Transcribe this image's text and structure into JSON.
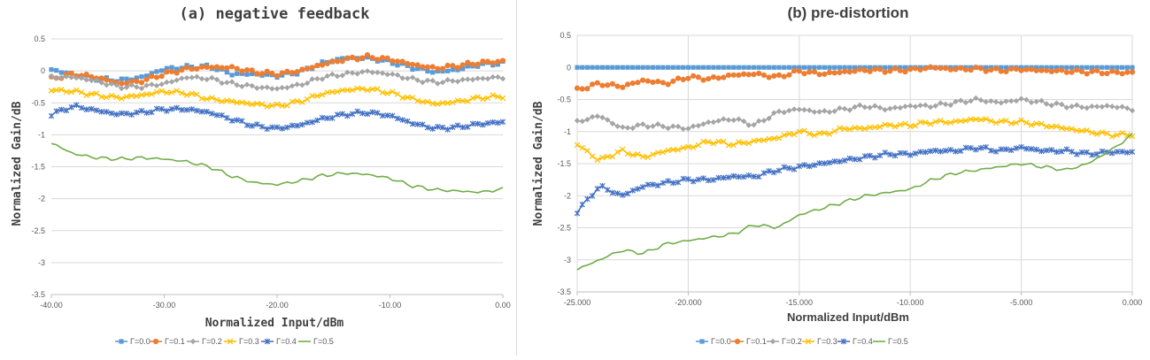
{
  "series_meta": [
    {
      "name": "Γ=0.0",
      "color": "#5b9bd5",
      "marker": "square"
    },
    {
      "name": "Γ=0.1",
      "color": "#ed7d31",
      "marker": "circle"
    },
    {
      "name": "Γ=0.2",
      "color": "#a5a5a5",
      "marker": "diamond"
    },
    {
      "name": "Γ=0.3",
      "color": "#ffc000",
      "marker": "x"
    },
    {
      "name": "Γ=0.4",
      "color": "#4472c4",
      "marker": "star"
    },
    {
      "name": "Γ=0.5",
      "color": "#70ad47",
      "marker": "none"
    }
  ],
  "chart_data": [
    {
      "type": "line",
      "title": "(a) negative feedback",
      "xlabel": "Normalized Input/dBm",
      "ylabel": "Normalized Gain/dB",
      "xlim": [
        -40,
        0
      ],
      "ylim": [
        -3.5,
        0.5
      ],
      "xticks": [
        -40,
        -30,
        -20,
        -10,
        0
      ],
      "xtick_labels": [
        "-40.00",
        "-30.00",
        "-20.00",
        "-10.00",
        "0.00"
      ],
      "yticks": [
        0.5,
        0,
        -0.5,
        -1,
        -1.5,
        -2,
        -2.5,
        -3,
        -3.5
      ],
      "ytick_labels": [
        "0.5",
        "0",
        "-0.5",
        "-1",
        "-1.5",
        "-2",
        "-2.5",
        "-3",
        "-3.5"
      ],
      "grid": "horizontal",
      "legend": "bottom",
      "x": [
        -40,
        -38,
        -36,
        -34,
        -32,
        -30,
        -28,
        -26,
        -24,
        -22,
        -20,
        -18,
        -16,
        -14,
        -12,
        -10,
        -8,
        -6,
        -4,
        -2,
        0
      ],
      "series": [
        {
          "name": "Γ=0.0",
          "values": [
            0.02,
            -0.06,
            -0.12,
            -0.15,
            -0.1,
            0.03,
            0.06,
            0.07,
            -0.05,
            -0.05,
            -0.08,
            -0.02,
            0.12,
            0.2,
            0.2,
            0.14,
            0.05,
            -0.02,
            0.02,
            0.1,
            0.12
          ]
        },
        {
          "name": "Γ=0.1",
          "values": [
            -0.12,
            -0.05,
            -0.1,
            -0.2,
            -0.16,
            -0.05,
            0.03,
            0.06,
            0.05,
            -0.02,
            -0.05,
            0.0,
            0.1,
            0.18,
            0.22,
            0.18,
            0.1,
            0.04,
            0.08,
            0.13,
            0.15
          ]
        },
        {
          "name": "Γ=0.2",
          "values": [
            -0.1,
            -0.1,
            -0.16,
            -0.25,
            -0.25,
            -0.2,
            -0.1,
            -0.12,
            -0.2,
            -0.25,
            -0.28,
            -0.22,
            -0.1,
            -0.05,
            -0.01,
            -0.05,
            -0.13,
            -0.18,
            -0.15,
            -0.12,
            -0.1
          ]
        },
        {
          "name": "Γ=0.3",
          "values": [
            -0.3,
            -0.32,
            -0.38,
            -0.42,
            -0.38,
            -0.32,
            -0.35,
            -0.44,
            -0.48,
            -0.52,
            -0.55,
            -0.48,
            -0.36,
            -0.3,
            -0.28,
            -0.34,
            -0.44,
            -0.52,
            -0.48,
            -0.42,
            -0.4
          ]
        },
        {
          "name": "Γ=0.4",
          "values": [
            -0.68,
            -0.55,
            -0.62,
            -0.68,
            -0.65,
            -0.6,
            -0.6,
            -0.65,
            -0.76,
            -0.86,
            -0.9,
            -0.85,
            -0.75,
            -0.68,
            -0.65,
            -0.7,
            -0.82,
            -0.9,
            -0.88,
            -0.83,
            -0.8
          ]
        },
        {
          "name": "Γ=0.5",
          "values": [
            -1.13,
            -1.3,
            -1.36,
            -1.38,
            -1.36,
            -1.38,
            -1.42,
            -1.5,
            -1.65,
            -1.75,
            -1.78,
            -1.72,
            -1.64,
            -1.6,
            -1.62,
            -1.68,
            -1.8,
            -1.86,
            -1.88,
            -1.9,
            -1.85
          ]
        }
      ]
    },
    {
      "type": "line",
      "title": "(b) pre-distortion",
      "xlabel": "Normalized Input/dBm",
      "ylabel": "Normalized Gain/dB",
      "xlim": [
        -25,
        0
      ],
      "ylim": [
        -3.5,
        0.5
      ],
      "xticks": [
        -25,
        -20,
        -15,
        -10,
        -5,
        0
      ],
      "xtick_labels": [
        "-25.000",
        "-20.000",
        "-15.000",
        "-10.000",
        "-5.000",
        "0.000"
      ],
      "yticks": [
        0.5,
        0,
        -0.5,
        -1,
        -1.5,
        -2,
        -2.5,
        -3,
        -3.5
      ],
      "ytick_labels": [
        "0.5",
        "0",
        "-0.5",
        "-1",
        "-1.5",
        "-2",
        "-2.5",
        "-3",
        "-3.5"
      ],
      "grid": "both",
      "legend": "bottom",
      "x": [
        -25,
        -24,
        -23,
        -22,
        -21,
        -20,
        -19,
        -18,
        -17,
        -16,
        -15,
        -14,
        -13,
        -12,
        -11,
        -10,
        -9,
        -8,
        -7,
        -6,
        -5,
        -4,
        -3,
        -2,
        -1,
        0
      ],
      "series": [
        {
          "name": "Γ=0.0",
          "values": [
            0,
            0,
            0,
            0,
            0,
            0,
            0,
            0,
            0,
            0,
            0,
            0,
            0,
            0,
            0,
            0,
            0,
            0,
            0,
            0,
            0,
            0,
            0,
            0,
            0,
            0
          ]
        },
        {
          "name": "Γ=0.1",
          "values": [
            -0.35,
            -0.25,
            -0.3,
            -0.2,
            -0.25,
            -0.15,
            -0.18,
            -0.12,
            -0.1,
            -0.15,
            -0.06,
            -0.1,
            -0.07,
            -0.04,
            -0.05,
            -0.04,
            0.0,
            -0.03,
            -0.02,
            -0.05,
            -0.03,
            -0.05,
            -0.06,
            -0.07,
            -0.08,
            -0.08
          ]
        },
        {
          "name": "Γ=0.2",
          "values": [
            -0.85,
            -0.75,
            -0.95,
            -0.9,
            -0.92,
            -0.95,
            -0.85,
            -0.8,
            -0.9,
            -0.7,
            -0.65,
            -0.7,
            -0.65,
            -0.6,
            -0.65,
            -0.6,
            -0.6,
            -0.55,
            -0.5,
            -0.55,
            -0.5,
            -0.55,
            -0.6,
            -0.62,
            -0.6,
            -0.65
          ]
        },
        {
          "name": "Γ=0.3",
          "values": [
            -1.2,
            -1.45,
            -1.3,
            -1.4,
            -1.3,
            -1.25,
            -1.15,
            -1.2,
            -1.15,
            -1.1,
            -1.0,
            -1.05,
            -0.95,
            -0.95,
            -0.9,
            -0.9,
            -0.85,
            -0.85,
            -0.8,
            -0.85,
            -0.85,
            -0.9,
            -0.95,
            -1.0,
            -1.05,
            -1.05
          ]
        },
        {
          "name": "Γ=0.4",
          "values": [
            -2.25,
            -1.85,
            -2.0,
            -1.85,
            -1.8,
            -1.75,
            -1.75,
            -1.7,
            -1.7,
            -1.6,
            -1.55,
            -1.5,
            -1.45,
            -1.4,
            -1.35,
            -1.35,
            -1.3,
            -1.3,
            -1.25,
            -1.3,
            -1.25,
            -1.3,
            -1.3,
            -1.35,
            -1.32,
            -1.32
          ]
        },
        {
          "name": "Γ=0.5",
          "values": [
            -3.15,
            -3.0,
            -2.85,
            -2.9,
            -2.75,
            -2.7,
            -2.65,
            -2.6,
            -2.45,
            -2.5,
            -2.3,
            -2.2,
            -2.1,
            -2.0,
            -1.95,
            -1.9,
            -1.75,
            -1.65,
            -1.6,
            -1.55,
            -1.5,
            -1.55,
            -1.6,
            -1.5,
            -1.3,
            -1.05
          ]
        }
      ]
    }
  ]
}
